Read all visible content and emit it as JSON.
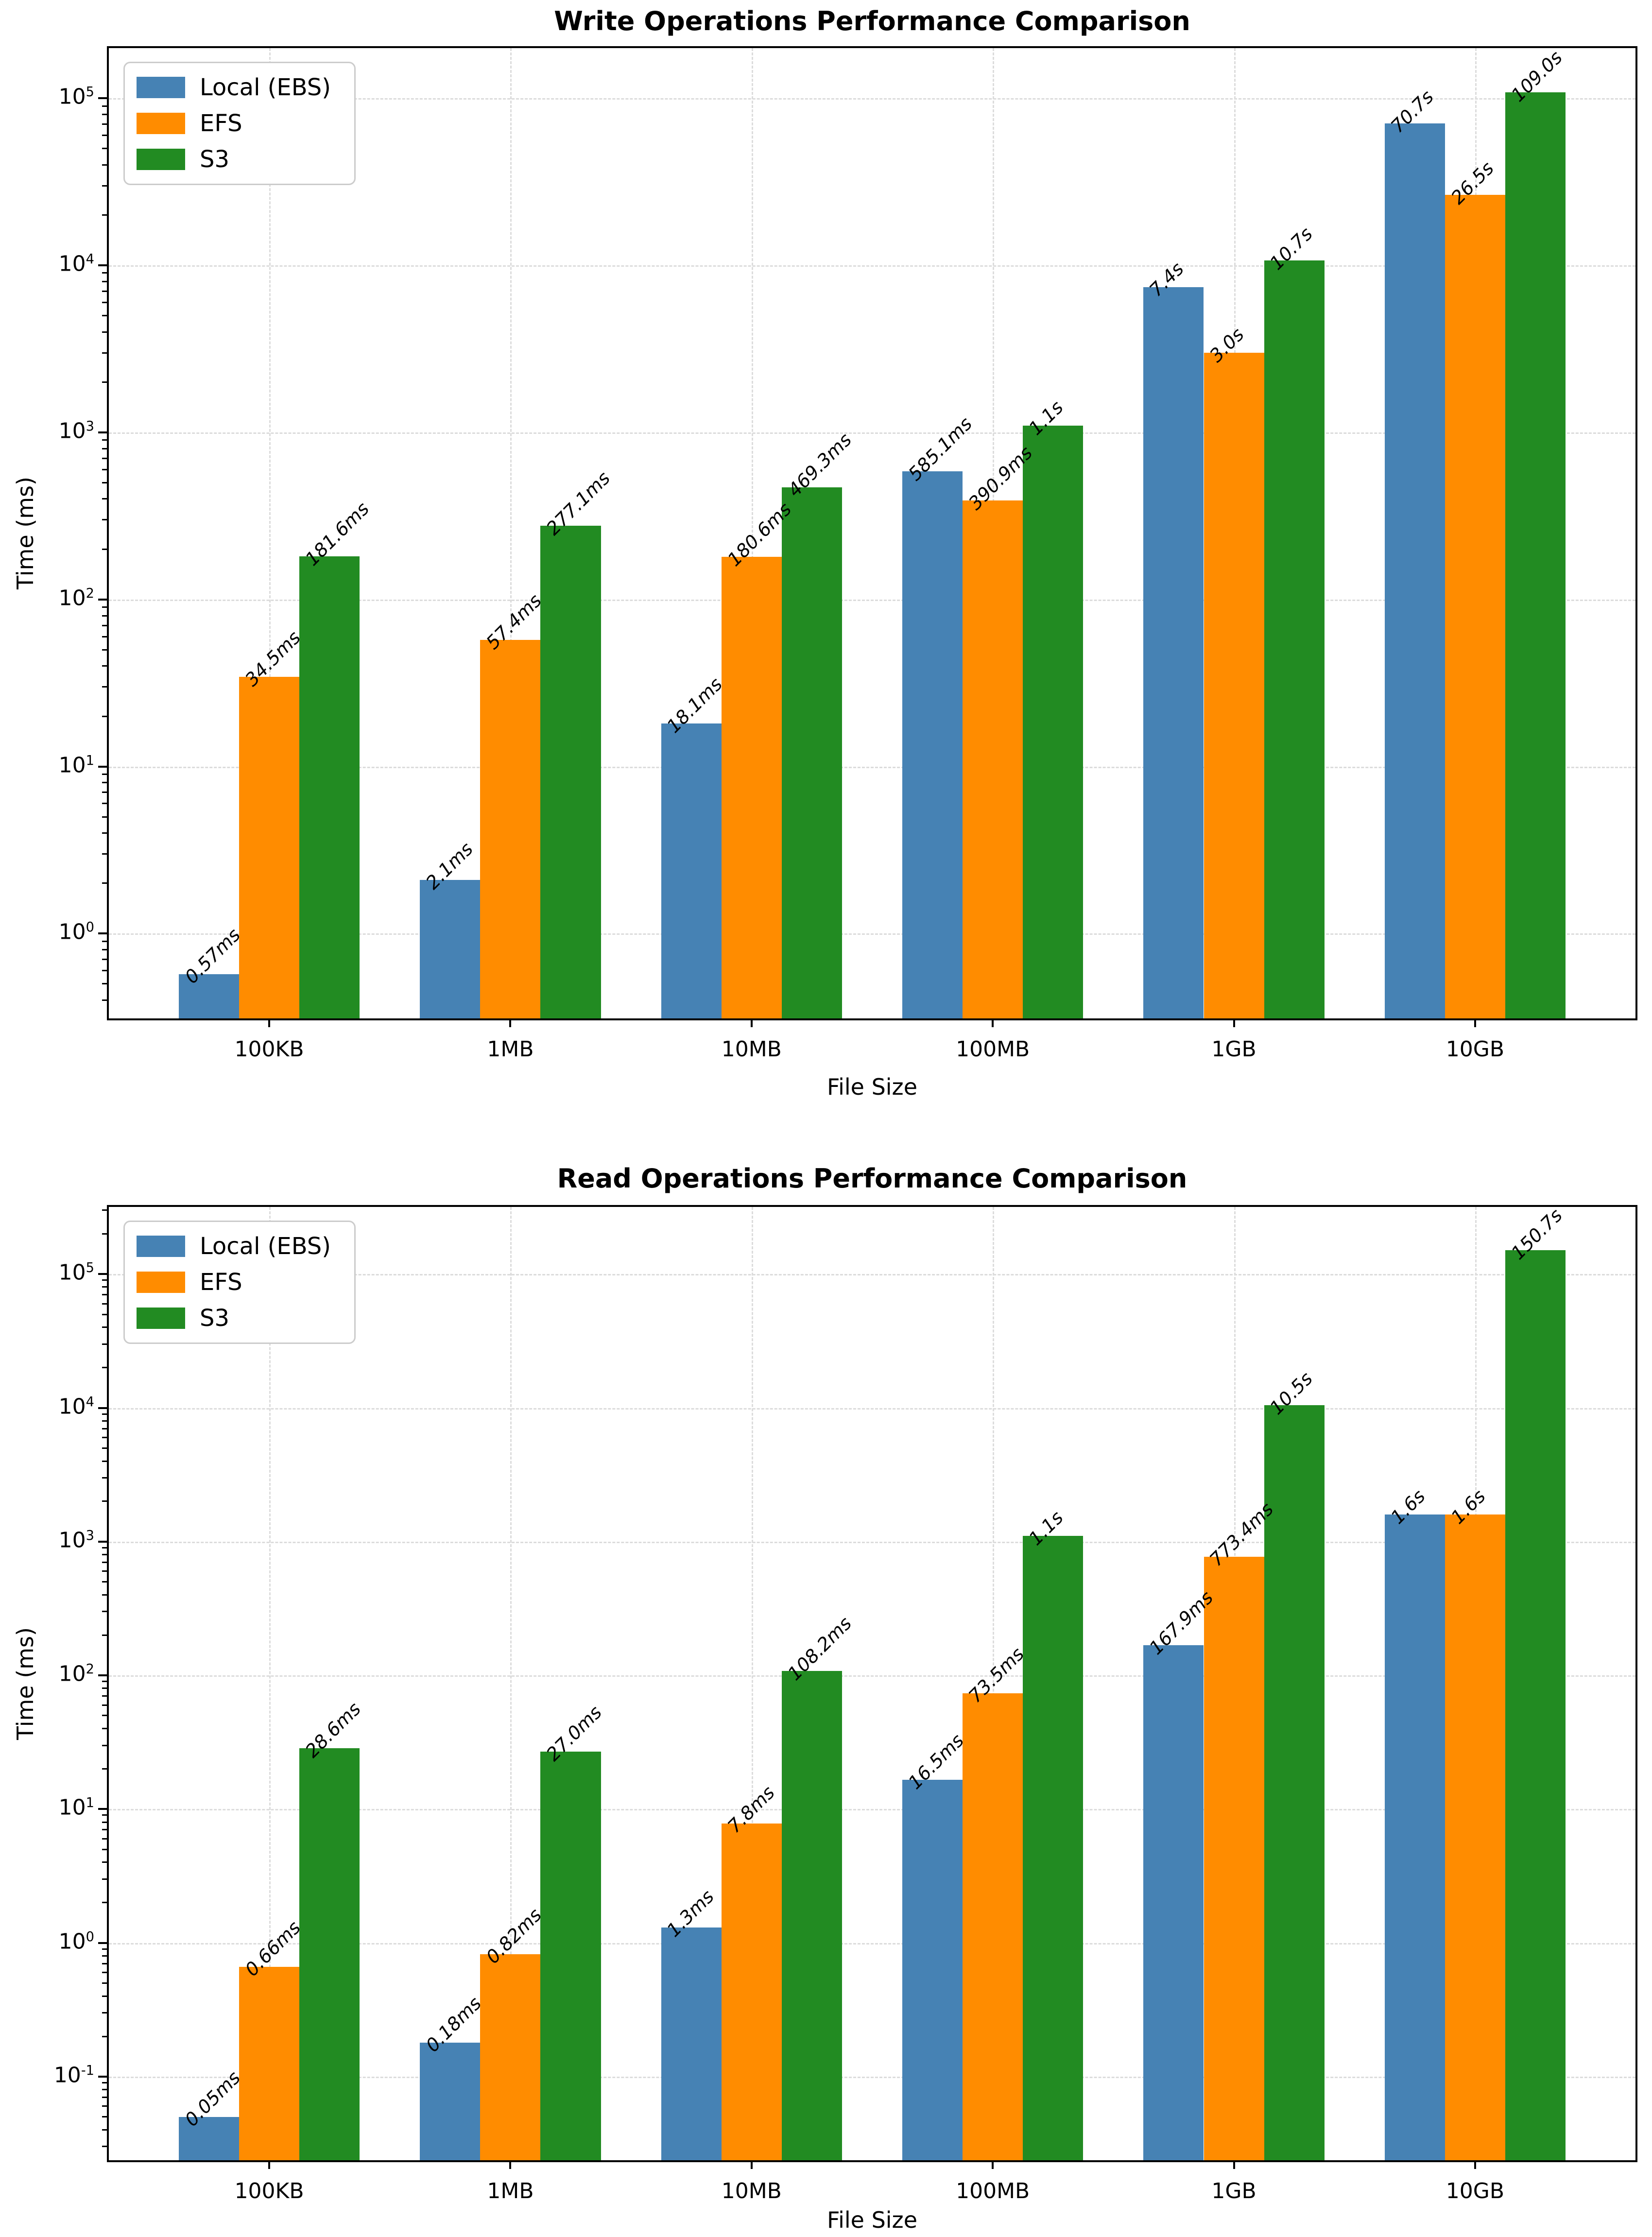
{
  "chart_data": [
    {
      "type": "bar",
      "title": "Write Operations Performance Comparison",
      "xlabel": "File Size",
      "ylabel": "Time (ms)",
      "yscale": "log",
      "ylim": [
        0.3104,
        200000
      ],
      "ytick_exponents": [
        0,
        1,
        2,
        3,
        4,
        5
      ],
      "grid": true,
      "legend_position": "upper left",
      "categories": [
        "100KB",
        "1MB",
        "10MB",
        "100MB",
        "1GB",
        "10GB"
      ],
      "series": [
        {
          "name": "Local (EBS)",
          "color": "#4682B4",
          "values_ms": [
            0.57,
            2.1,
            18.1,
            585.1,
            7400,
            70700
          ],
          "labels": [
            "0.57ms",
            "2.1ms",
            "18.1ms",
            "585.1ms",
            "7.4s",
            "70.7s"
          ]
        },
        {
          "name": "EFS",
          "color": "#FF8C00",
          "values_ms": [
            34.5,
            57.4,
            180.6,
            390.9,
            3000,
            26500
          ],
          "labels": [
            "34.5ms",
            "57.4ms",
            "180.6ms",
            "390.9ms",
            "3.0s",
            "26.5s"
          ]
        },
        {
          "name": "S3",
          "color": "#228B22",
          "values_ms": [
            181.6,
            277.1,
            469.3,
            1100,
            10700,
            109000
          ],
          "labels": [
            "181.6ms",
            "277.1ms",
            "469.3ms",
            "1.1s",
            "10.7s",
            "109.0s"
          ]
        }
      ]
    },
    {
      "type": "bar",
      "title": "Read Operations Performance Comparison",
      "xlabel": "File Size",
      "ylabel": "Time (ms)",
      "yscale": "log",
      "ylim": [
        0.0237,
        318000
      ],
      "ytick_exponents": [
        -1,
        0,
        1,
        2,
        3,
        4,
        5
      ],
      "grid": true,
      "legend_position": "upper left",
      "categories": [
        "100KB",
        "1MB",
        "10MB",
        "100MB",
        "1GB",
        "10GB"
      ],
      "series": [
        {
          "name": "Local (EBS)",
          "color": "#4682B4",
          "values_ms": [
            0.05,
            0.18,
            1.3,
            16.5,
            167.9,
            1600
          ],
          "labels": [
            "0.05ms",
            "0.18ms",
            "1.3ms",
            "16.5ms",
            "167.9ms",
            "1.6s"
          ]
        },
        {
          "name": "EFS",
          "color": "#FF8C00",
          "values_ms": [
            0.66,
            0.82,
            7.8,
            73.5,
            773.4,
            1600
          ],
          "labels": [
            "0.66ms",
            "0.82ms",
            "7.8ms",
            "73.5ms",
            "773.4ms",
            "1.6s"
          ]
        },
        {
          "name": "S3",
          "color": "#228B22",
          "values_ms": [
            28.6,
            27.0,
            108.2,
            1100,
            10500,
            150700
          ],
          "labels": [
            "28.6ms",
            "27.0ms",
            "108.2ms",
            "1.1s",
            "10.5s",
            "150.7s"
          ]
        }
      ]
    }
  ]
}
